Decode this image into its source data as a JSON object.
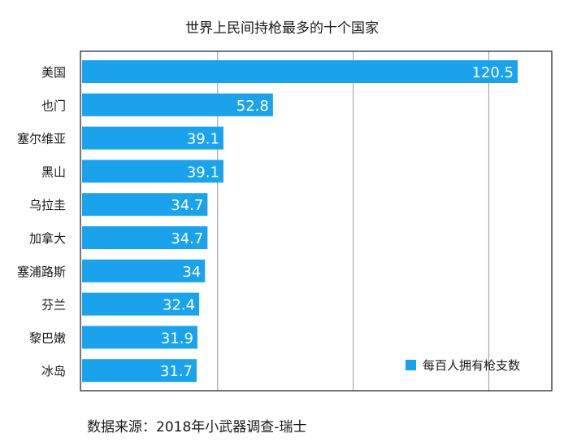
{
  "chart_data": {
    "type": "bar",
    "orientation": "horizontal",
    "title": "世界上民间持枪最多的十个国家",
    "categories": [
      "美国",
      "也门",
      "塞尔维亚",
      "黑山",
      "乌拉圭",
      "加拿大",
      "塞浦路斯",
      "芬兰",
      "黎巴嫩",
      "冰岛"
    ],
    "series": [
      {
        "name": "每百人拥有枪支数",
        "values": [
          120.5,
          52.8,
          39.1,
          39.1,
          34.7,
          34.7,
          34,
          32.4,
          31.9,
          31.7
        ],
        "labels": [
          "120.5",
          "52.8",
          "39.1",
          "39.1",
          "34.7",
          "34.7",
          "34",
          "32.4",
          "31.9",
          "31.7"
        ]
      }
    ],
    "xlim": [
      0,
      125
    ],
    "x_gridlines": [
      0,
      37.5,
      75,
      112.5
    ],
    "tick_labels_shown": false,
    "grid": true,
    "legend": "bottom-right",
    "colors": {
      "bar": "#1aa3ec",
      "label": "#ffffff",
      "grid": "#9a9a9a",
      "axis": "#1a1a1a"
    }
  },
  "source": "数据来源：2018年小武器调查-瑞士"
}
